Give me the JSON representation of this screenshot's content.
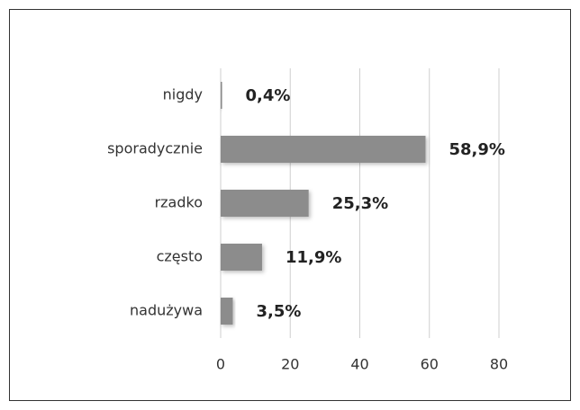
{
  "chart_data": {
    "type": "bar",
    "orientation": "horizontal",
    "categories": [
      "nigdy",
      "sporadycznie",
      "rzadko",
      "często",
      "nadużywa"
    ],
    "values": [
      0.4,
      58.9,
      25.3,
      11.9,
      3.5
    ],
    "value_labels": [
      "0,4%",
      "58,9%",
      "25,3%",
      "11,9%",
      "3,5%"
    ],
    "color": "#8c8c8c",
    "xlim": [
      0,
      80
    ],
    "xticks": [
      0,
      20,
      40,
      60,
      80
    ],
    "grid": true
  }
}
